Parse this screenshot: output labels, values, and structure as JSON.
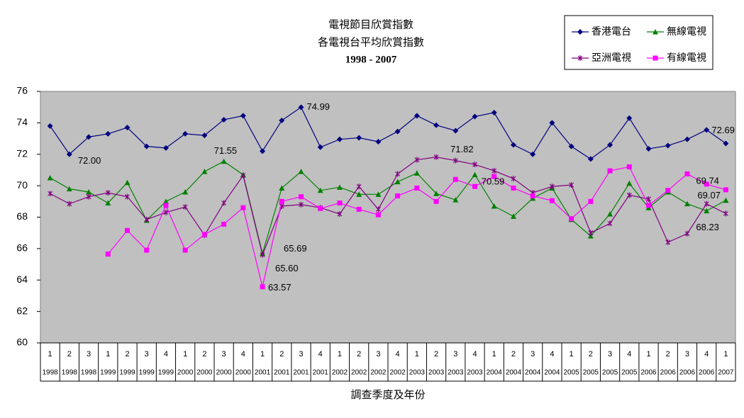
{
  "chart_data": {
    "type": "line",
    "title": [
      "電視節目欣賞指數",
      "各電視台平均欣賞指數",
      "1998 - 2007"
    ],
    "x_label": "調查季度及年份",
    "categories": [
      {
        "quarter": "1",
        "year": "1998"
      },
      {
        "quarter": "2",
        "year": "1998"
      },
      {
        "quarter": "3",
        "year": "1998"
      },
      {
        "quarter": "1",
        "year": "1999"
      },
      {
        "quarter": "2",
        "year": "1999"
      },
      {
        "quarter": "3",
        "year": "1999"
      },
      {
        "quarter": "4",
        "year": "1999"
      },
      {
        "quarter": "1",
        "year": "2000"
      },
      {
        "quarter": "2",
        "year": "2000"
      },
      {
        "quarter": "3",
        "year": "2000"
      },
      {
        "quarter": "4",
        "year": "2000"
      },
      {
        "quarter": "1",
        "year": "2001"
      },
      {
        "quarter": "2",
        "year": "2001"
      },
      {
        "quarter": "3",
        "year": "2001"
      },
      {
        "quarter": "4",
        "year": "2001"
      },
      {
        "quarter": "1",
        "year": "2002"
      },
      {
        "quarter": "2",
        "year": "2002"
      },
      {
        "quarter": "3",
        "year": "2002"
      },
      {
        "quarter": "4",
        "year": "2002"
      },
      {
        "quarter": "1",
        "year": "2003"
      },
      {
        "quarter": "2",
        "year": "2003"
      },
      {
        "quarter": "3",
        "year": "2003"
      },
      {
        "quarter": "4",
        "year": "2003"
      },
      {
        "quarter": "1",
        "year": "2004"
      },
      {
        "quarter": "2",
        "year": "2004"
      },
      {
        "quarter": "3",
        "year": "2004"
      },
      {
        "quarter": "4",
        "year": "2004"
      },
      {
        "quarter": "1",
        "year": "2005"
      },
      {
        "quarter": "2",
        "year": "2005"
      },
      {
        "quarter": "3",
        "year": "2005"
      },
      {
        "quarter": "4",
        "year": "2005"
      },
      {
        "quarter": "1",
        "year": "2006"
      },
      {
        "quarter": "2",
        "year": "2006"
      },
      {
        "quarter": "3",
        "year": "2006"
      },
      {
        "quarter": "4",
        "year": "2006"
      },
      {
        "quarter": "1",
        "year": "2007"
      }
    ],
    "series": [
      {
        "name": "香港電台",
        "color": "#000080",
        "marker": "diamond",
        "values": [
          73.8,
          72.0,
          73.1,
          73.3,
          73.7,
          72.5,
          72.4,
          73.3,
          73.2,
          74.2,
          74.45,
          72.2,
          74.15,
          74.99,
          72.45,
          72.95,
          73.05,
          72.8,
          73.45,
          74.45,
          73.85,
          73.5,
          74.4,
          74.65,
          72.6,
          72.0,
          74.0,
          72.5,
          71.7,
          72.6,
          74.3,
          72.35,
          72.55,
          72.95,
          73.55,
          72.69
        ],
        "value_labels": [
          null,
          "72.00",
          null,
          null,
          null,
          null,
          null,
          null,
          null,
          null,
          null,
          null,
          null,
          "74.99",
          null,
          null,
          null,
          null,
          null,
          null,
          null,
          null,
          null,
          null,
          null,
          null,
          null,
          null,
          null,
          null,
          null,
          null,
          null,
          null,
          null,
          "72.69"
        ]
      },
      {
        "name": "無線電視",
        "color": "#008000",
        "marker": "triangle",
        "values": [
          70.5,
          69.8,
          69.6,
          68.9,
          70.2,
          67.8,
          69.0,
          69.6,
          70.9,
          71.55,
          70.7,
          65.69,
          69.85,
          70.9,
          69.7,
          69.9,
          69.45,
          69.45,
          70.25,
          70.8,
          69.5,
          69.1,
          70.7,
          68.7,
          68.05,
          69.2,
          69.85,
          67.85,
          66.8,
          68.2,
          70.15,
          68.6,
          69.6,
          68.85,
          68.4,
          69.07
        ],
        "value_labels": [
          null,
          null,
          null,
          null,
          null,
          null,
          null,
          null,
          null,
          "71.55",
          null,
          "65.69",
          null,
          null,
          null,
          null,
          null,
          null,
          null,
          null,
          null,
          null,
          null,
          null,
          null,
          null,
          null,
          null,
          null,
          null,
          null,
          null,
          null,
          null,
          null,
          "69.07"
        ]
      },
      {
        "name": "亞洲電視",
        "color": "#800080",
        "marker": "star",
        "values": [
          69.5,
          68.85,
          69.3,
          69.55,
          69.3,
          67.85,
          68.3,
          68.65,
          66.85,
          68.9,
          70.65,
          65.6,
          68.7,
          68.8,
          68.6,
          68.2,
          69.95,
          68.5,
          70.75,
          71.65,
          71.82,
          71.6,
          71.35,
          70.95,
          70.45,
          69.55,
          69.95,
          70.05,
          67.0,
          67.6,
          69.4,
          69.15,
          66.4,
          66.95,
          68.85,
          68.23
        ],
        "value_labels": [
          null,
          null,
          null,
          null,
          null,
          null,
          null,
          null,
          null,
          null,
          null,
          "65.60",
          null,
          null,
          null,
          null,
          null,
          null,
          null,
          null,
          "71.82",
          null,
          null,
          null,
          null,
          null,
          null,
          null,
          null,
          null,
          null,
          null,
          null,
          null,
          null,
          "68.23"
        ]
      },
      {
        "name": "有線電視",
        "color": "#ff00ff",
        "marker": "square",
        "values": [
          null,
          null,
          null,
          65.65,
          67.15,
          65.9,
          68.75,
          65.9,
          66.9,
          67.55,
          68.6,
          63.57,
          69.0,
          69.3,
          68.55,
          68.9,
          68.5,
          68.15,
          69.35,
          69.85,
          69.0,
          70.4,
          69.95,
          70.59,
          69.85,
          69.35,
          69.05,
          67.9,
          69.0,
          70.95,
          71.2,
          68.75,
          69.7,
          70.75,
          70.1,
          69.74
        ],
        "value_labels": [
          null,
          null,
          null,
          null,
          null,
          null,
          null,
          null,
          null,
          null,
          null,
          "63.57",
          null,
          null,
          null,
          null,
          null,
          null,
          null,
          null,
          null,
          null,
          null,
          "70.59",
          null,
          null,
          null,
          null,
          null,
          null,
          null,
          null,
          null,
          null,
          null,
          "69.74"
        ]
      }
    ],
    "ylim": [
      60,
      76
    ],
    "yticks": [
      60,
      62,
      64,
      66,
      68,
      70,
      72,
      74,
      76
    ],
    "grid": false,
    "legend": "top-right"
  }
}
